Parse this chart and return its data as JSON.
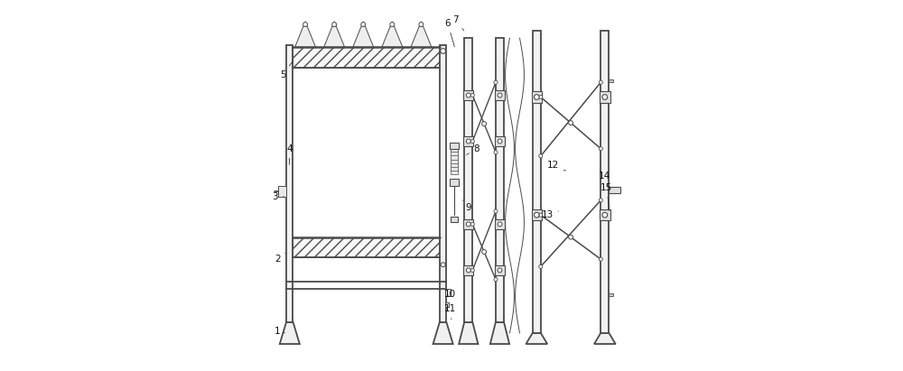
{
  "bg_color": "#ffffff",
  "line_color": "#4a4a4a",
  "lw_main": 1.3,
  "lw_thin": 0.7,
  "lw_thick": 1.8,
  "fig_width": 10.0,
  "fig_height": 4.11
}
